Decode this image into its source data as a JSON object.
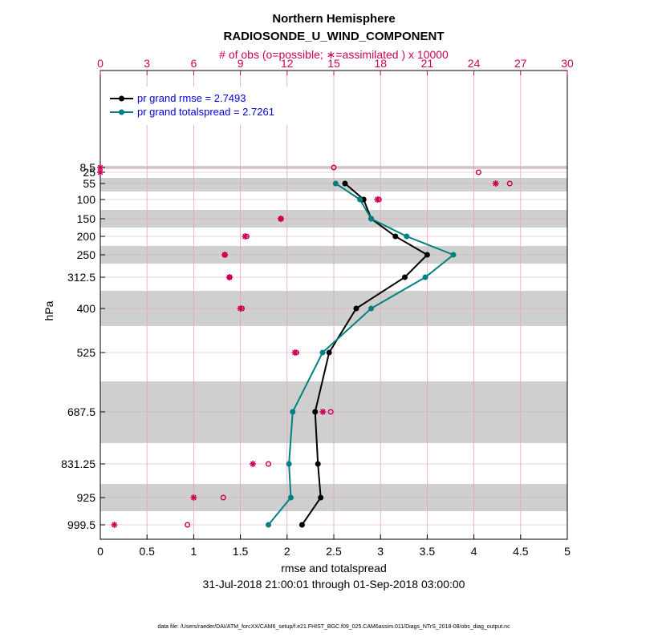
{
  "chart_data": {
    "type": "line",
    "title": "Northern Hemisphere",
    "subtitle": "RADIOSONDE_U_WIND_COMPONENT",
    "top_axis_label": "# of obs (o=possible; ∗=assimilated ) x 10000",
    "xlabel": "rmse and totalspread",
    "ylabel": "hPa",
    "date_range": "31-Jul-2018 21:00:01 through 01-Sep-2018 03:00:00",
    "footer": "data file: /Users/raeder/DAI/ATM_forcXX/CAM6_setup/f.e21.FHIST_BGC.f09_025.CAM6assim.011/Diags_NTrS_2018-08/obs_diag_output.nc",
    "xlim": [
      0,
      5
    ],
    "x_ticks": [
      "0",
      "0.5",
      "1",
      "1.5",
      "2",
      "2.5",
      "3",
      "3.5",
      "4",
      "4.5",
      "5"
    ],
    "top_xlim": [
      0,
      30
    ],
    "top_ticks": [
      "0",
      "3",
      "6",
      "9",
      "12",
      "15",
      "18",
      "21",
      "24",
      "27",
      "30"
    ],
    "levels": [
      8.5,
      25,
      55,
      100,
      150,
      200,
      250,
      312.5,
      400,
      525,
      687.5,
      831.25,
      925,
      999.5
    ],
    "level_labels": [
      "8.5",
      "25",
      "55",
      "100",
      "150",
      "200",
      "250",
      "312.5",
      "400",
      "525",
      "687.5",
      "831.25",
      "925",
      "999.5"
    ],
    "shaded_bands": [
      [
        8,
        9
      ],
      [
        37.5,
        75
      ],
      [
        125,
        175
      ],
      [
        225,
        275
      ],
      [
        350,
        450
      ],
      [
        600,
        775
      ],
      [
        875,
        975
      ]
    ],
    "series": [
      {
        "name": "pr grand rmse",
        "legend": "pr grand rmse = 2.7493",
        "color": "#000000",
        "levels": [
          55,
          100,
          150,
          200,
          250,
          312.5,
          400,
          525,
          687.5,
          831.25,
          925,
          999.5
        ],
        "values": [
          2.62,
          2.82,
          2.9,
          3.16,
          3.5,
          3.26,
          2.74,
          2.45,
          2.3,
          2.33,
          2.36,
          2.16
        ]
      },
      {
        "name": "pr grand totalspread",
        "legend": "pr grand totalspread = 2.7261",
        "color": "#008080",
        "levels": [
          55,
          100,
          150,
          200,
          250,
          312.5,
          400,
          525,
          687.5,
          831.25,
          925,
          999.5
        ],
        "values": [
          2.52,
          2.78,
          2.9,
          3.28,
          3.78,
          3.48,
          2.9,
          2.38,
          2.06,
          2.02,
          2.04,
          1.8
        ]
      }
    ],
    "obs_possible": {
      "levels": [
        8.5,
        25,
        55,
        100,
        150,
        200,
        250,
        312.5,
        400,
        525,
        687.5,
        831.25,
        925,
        999.5
      ],
      "values": [
        15.0,
        24.3,
        26.3,
        17.9,
        11.6,
        9.4,
        8.0,
        8.3,
        9.1,
        12.6,
        14.8,
        10.8,
        7.9,
        5.6
      ]
    },
    "obs_assimilated": {
      "levels": [
        8.5,
        25,
        55,
        100,
        150,
        200,
        250,
        312.5,
        400,
        525,
        687.5,
        831.25,
        925,
        999.5
      ],
      "values": [
        0.0,
        0.0,
        25.4,
        17.8,
        11.6,
        9.3,
        8.0,
        8.3,
        9.0,
        12.5,
        14.3,
        9.8,
        6.0,
        0.9
      ]
    }
  }
}
